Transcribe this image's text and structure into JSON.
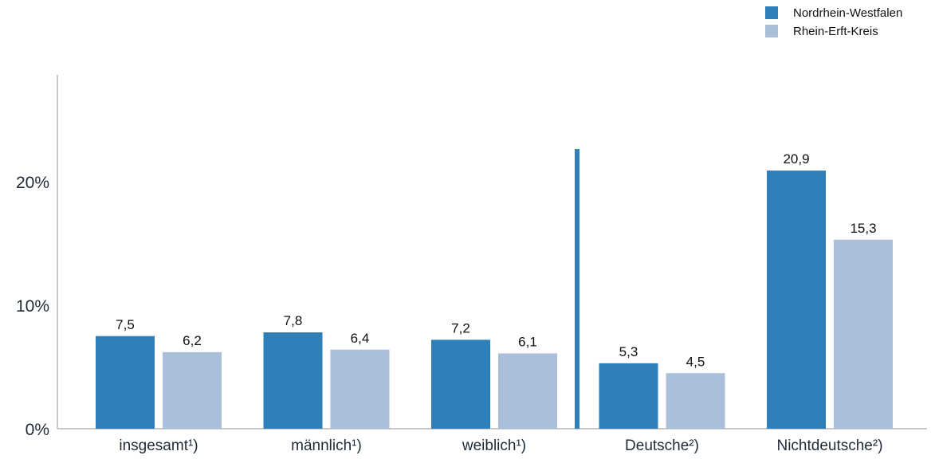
{
  "chart_data": {
    "type": "bar",
    "categories": [
      "insgesamt¹)",
      "männlich¹)",
      "weiblich¹)",
      "Deutsche²)",
      "Nichtdeutsche²)"
    ],
    "series": [
      {
        "name": "Nordrhein-Westfalen",
        "color": "#2e7fba",
        "values": [
          7.5,
          7.8,
          7.2,
          5.3,
          20.9
        ],
        "labels": [
          "7,5",
          "7,8",
          "7,2",
          "5,3",
          "20,9"
        ]
      },
      {
        "name": "Rhein-Erft-Kreis",
        "color": "#a9bfdc",
        "values": [
          6.2,
          6.4,
          6.1,
          4.5,
          15.3
        ],
        "labels": [
          "6,2",
          "6,4",
          "6,1",
          "4,5",
          "15,3"
        ]
      }
    ],
    "yticks": [
      {
        "value": 0,
        "label": "0%"
      },
      {
        "value": 10,
        "label": "10%"
      },
      {
        "value": 20,
        "label": "20%"
      }
    ],
    "ylim": [
      0,
      30
    ],
    "separator_after_category": 2,
    "legend_position": "top-right",
    "grid": false,
    "title": "",
    "xlabel": "",
    "ylabel": ""
  }
}
